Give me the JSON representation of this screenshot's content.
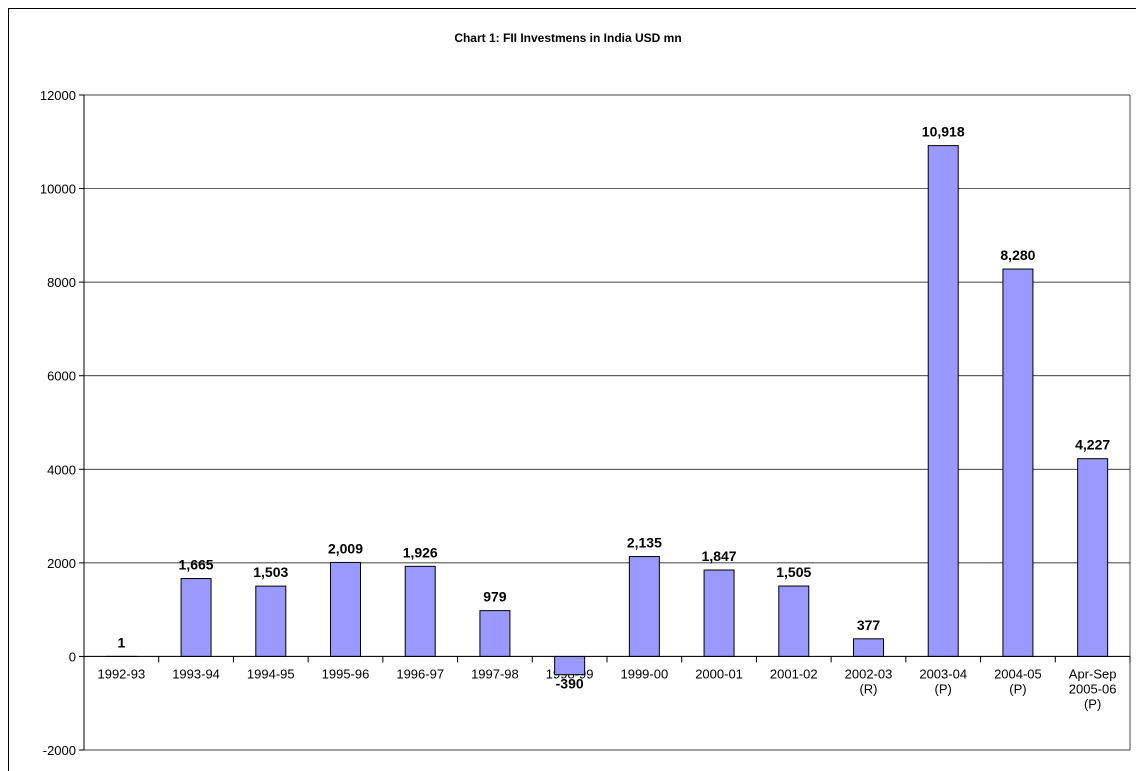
{
  "chart_data": {
    "type": "bar",
    "title": "Chart 1: FII Investmens in India USD mn",
    "categories": [
      "1992-93",
      "1993-94",
      "1994-95",
      "1995-96",
      "1996-97",
      "1997-98",
      "1998-99",
      "1999-00",
      "2000-01",
      "2001-02",
      "2002-03\n(R)",
      "2003-04\n(P)",
      "2004-05\n(P)",
      "Apr-Sep\n2005-06\n(P)"
    ],
    "values": [
      1,
      1665,
      1503,
      2009,
      1926,
      979,
      -390,
      2135,
      1847,
      1505,
      377,
      10918,
      8280,
      4227
    ],
    "value_labels": [
      "1",
      "1,665",
      "1,503",
      "2,009",
      "1,926",
      "979",
      "-390",
      "2,135",
      "1,847",
      "1,505",
      "377",
      "10,918",
      "8,280",
      "4,227"
    ],
    "color": "#9999ff",
    "ylim": [
      -2000,
      12000
    ],
    "yticks": [
      -2000,
      0,
      2000,
      4000,
      6000,
      8000,
      10000,
      12000
    ],
    "grid": true
  }
}
